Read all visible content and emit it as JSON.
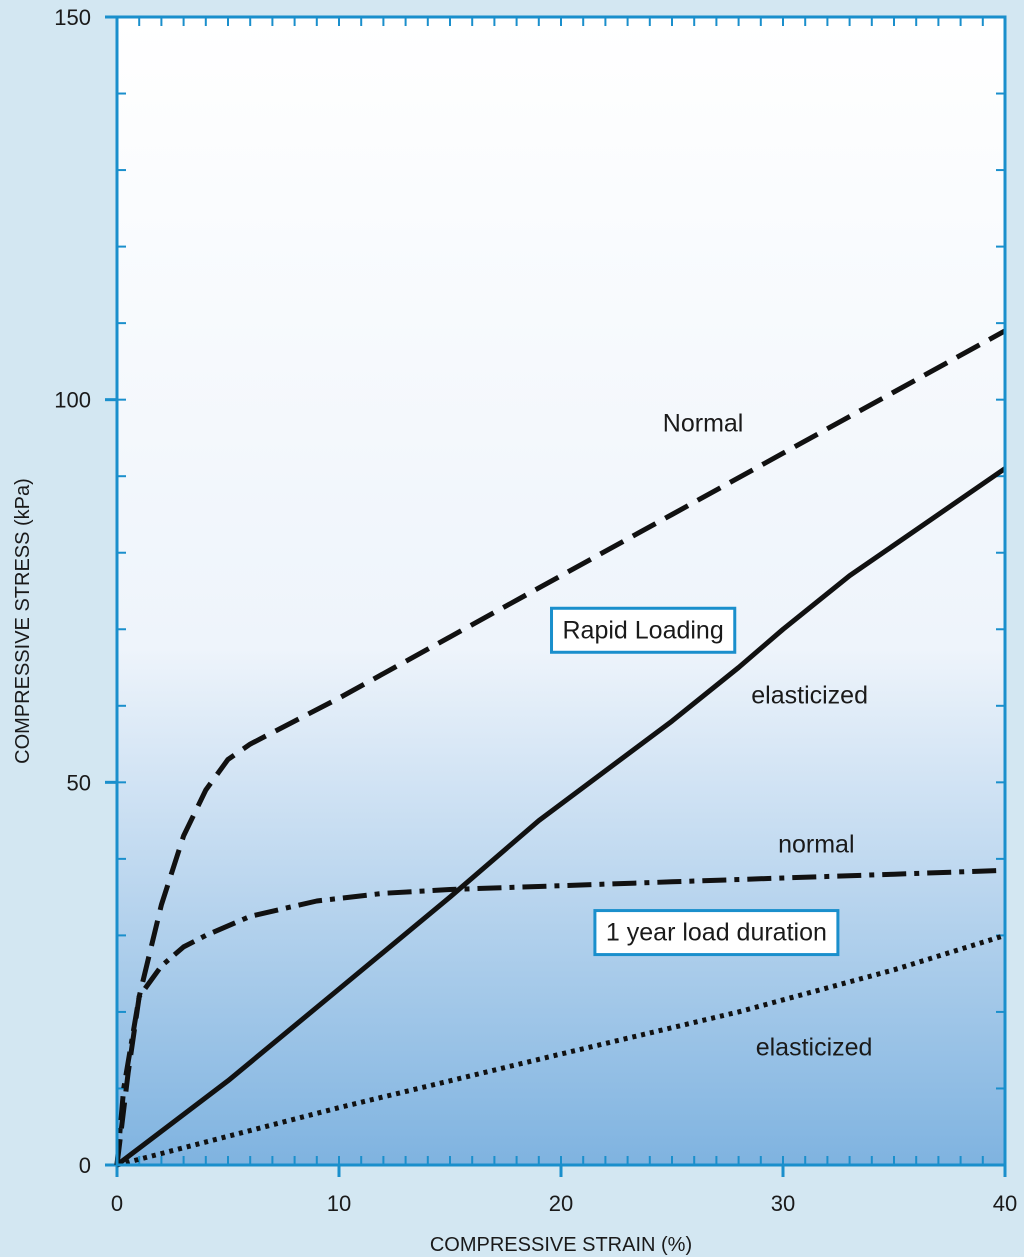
{
  "chart_data": {
    "type": "line",
    "xlabel": "COMPRESSIVE STRAIN (%)",
    "ylabel": "COMPRESSIVE STRESS (kPa)",
    "xlim": [
      0,
      40
    ],
    "ylim": [
      0,
      150
    ],
    "xticks": [
      0,
      10,
      20,
      30,
      40
    ],
    "yticks": [
      0,
      50,
      100,
      150
    ],
    "minor_x_step": 1,
    "minor_y_step": 10,
    "grid": false,
    "colors": {
      "axis": "#1a8fcc",
      "series": "#111111",
      "box_border": "#1a8fcc",
      "box_fill": "#ffffff",
      "background_outer": "#d3e7f2",
      "plot_top": "#ffffff",
      "plot_bottom": "#7fb3e0"
    },
    "series": [
      {
        "condition": "Rapid Loading",
        "label": "Normal",
        "style": "dashed",
        "x": [
          0,
          0.5,
          1,
          2,
          3,
          4,
          5,
          6,
          8,
          10,
          15,
          20,
          25,
          30,
          35,
          40
        ],
        "y": [
          0,
          12,
          22,
          34,
          43,
          49,
          53,
          55,
          58,
          61,
          69,
          77,
          85,
          93,
          101,
          109
        ]
      },
      {
        "condition": "Rapid Loading",
        "label": "elasticized",
        "style": "solid",
        "x": [
          0,
          5,
          10,
          15,
          19,
          25,
          28,
          30,
          33,
          36,
          40
        ],
        "y": [
          0,
          11,
          23,
          35,
          45,
          58,
          65,
          70,
          77,
          83,
          91
        ]
      },
      {
        "condition": "1 year load duration",
        "label": "normal",
        "style": "dashdot",
        "x": [
          0,
          0.3,
          1,
          2,
          3,
          4,
          6,
          9,
          12,
          15,
          20,
          25,
          30,
          35,
          40
        ],
        "y": [
          0,
          10,
          22,
          26,
          28.5,
          30,
          32.5,
          34.5,
          35.5,
          36,
          36.5,
          37,
          37.5,
          38,
          38.5
        ]
      },
      {
        "condition": "1 year load duration",
        "label": "elasticized",
        "style": "dotted",
        "x": [
          0,
          10,
          20,
          28,
          35,
          40
        ],
        "y": [
          0,
          7.5,
          14.5,
          20,
          25.5,
          30
        ]
      }
    ],
    "annotations": [
      {
        "type": "boxed",
        "text": "Rapid Loading",
        "x": 23.7,
        "y": 70
      },
      {
        "type": "label",
        "text": "Normal",
        "x": 26.4,
        "y": 97
      },
      {
        "type": "label",
        "text": "elasticized",
        "x": 31.2,
        "y": 61.5
      },
      {
        "type": "label",
        "text": "normal",
        "x": 31.5,
        "y": 42
      },
      {
        "type": "boxed",
        "text": "1 year load duration",
        "x": 27,
        "y": 30.5
      },
      {
        "type": "label",
        "text": "elasticized",
        "x": 31.4,
        "y": 15.5
      }
    ]
  }
}
